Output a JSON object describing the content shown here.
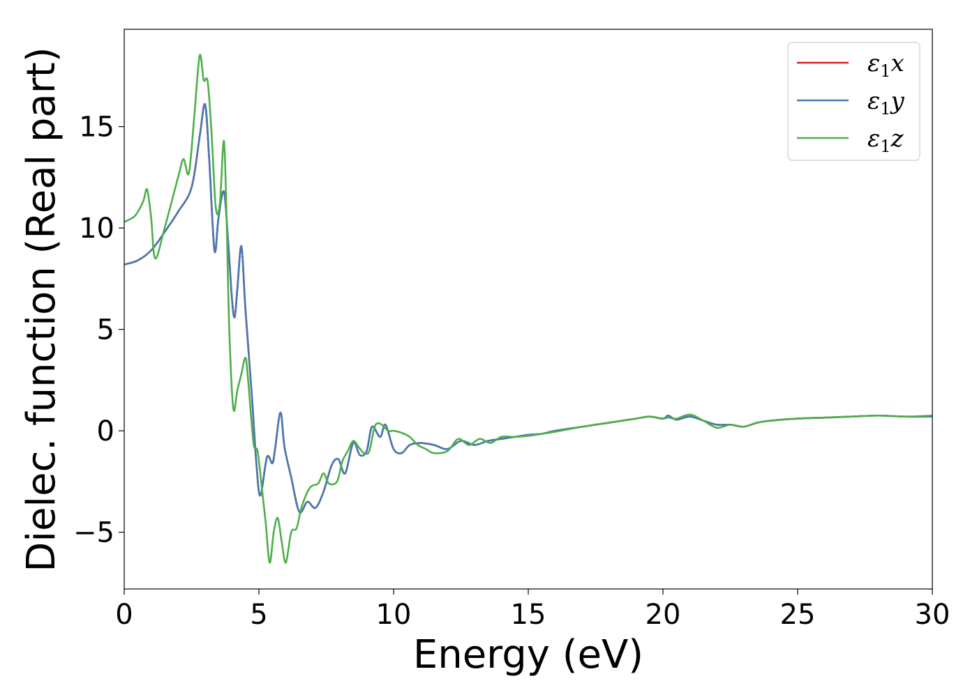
{
  "chart_data": {
    "type": "line",
    "title": "",
    "xlabel": "Energy (eV)",
    "ylabel": "Dielec. function (Real part)",
    "xlim": [
      0,
      30
    ],
    "ylim": [
      -7.8,
      19.8
    ],
    "xticks": [
      0,
      5,
      10,
      15,
      20,
      25,
      30
    ],
    "xtick_labels": [
      "0",
      "5",
      "10",
      "15",
      "20",
      "25",
      "30"
    ],
    "yticks": [
      -5,
      0,
      5,
      10,
      15
    ],
    "ytick_labels": [
      "−5",
      "0",
      "5",
      "10",
      "15"
    ],
    "grid": false,
    "legend_position": "top-right",
    "series": [
      {
        "name": "ε1x",
        "legend": {
          "base": "ε",
          "sub": "1",
          "suffix": "x"
        },
        "color": "#e41a1c",
        "x": [
          0,
          0.5,
          1.0,
          1.5,
          2.0,
          2.5,
          2.8,
          3.0,
          3.15,
          3.35,
          3.5,
          3.7,
          3.85,
          4.0,
          4.1,
          4.2,
          4.35,
          4.5,
          4.75,
          4.9,
          5.05,
          5.3,
          5.5,
          5.6,
          5.8,
          5.95,
          6.2,
          6.5,
          6.8,
          7.1,
          7.4,
          7.7,
          7.95,
          8.2,
          8.5,
          8.75,
          9.0,
          9.2,
          9.5,
          9.7,
          10.0,
          10.3,
          10.6,
          11.0,
          11.5,
          12.0,
          12.5,
          13.0,
          13.5,
          14.0,
          14.5,
          15.0,
          15.5,
          16.0,
          17.0,
          18.0,
          19.0,
          19.5,
          20.0,
          20.2,
          20.5,
          21.0,
          21.5,
          22.0,
          22.5,
          23.0,
          23.5,
          24.0,
          25.0,
          26.0,
          27.0,
          28.0,
          29.0,
          30.0
        ],
        "values": [
          8.2,
          8.4,
          8.9,
          9.8,
          10.8,
          12.0,
          14.5,
          16.1,
          13.5,
          8.9,
          10.5,
          11.8,
          9.5,
          6.5,
          5.6,
          7.0,
          9.1,
          6.0,
          1.5,
          -1.5,
          -3.2,
          -1.3,
          -1.6,
          -0.9,
          0.9,
          -0.8,
          -2.3,
          -4.0,
          -3.5,
          -3.8,
          -3.0,
          -1.7,
          -1.4,
          -2.1,
          -0.6,
          -1.2,
          -1.0,
          0.2,
          -0.3,
          0.3,
          -0.9,
          -1.1,
          -0.7,
          -0.6,
          -0.7,
          -0.9,
          -0.5,
          -0.7,
          -0.5,
          -0.4,
          -0.3,
          -0.2,
          -0.15,
          0.0,
          0.2,
          0.4,
          0.6,
          0.7,
          0.6,
          0.75,
          0.55,
          0.7,
          0.5,
          0.3,
          0.3,
          0.2,
          0.4,
          0.5,
          0.6,
          0.65,
          0.7,
          0.75,
          0.7,
          0.7
        ]
      },
      {
        "name": "ε1y",
        "legend": {
          "base": "ε",
          "sub": "1",
          "suffix": "y"
        },
        "color": "#4678b2",
        "x": [
          0,
          0.5,
          1.0,
          1.5,
          2.0,
          2.5,
          2.8,
          3.0,
          3.15,
          3.35,
          3.5,
          3.7,
          3.85,
          4.0,
          4.1,
          4.2,
          4.35,
          4.5,
          4.75,
          4.9,
          5.05,
          5.3,
          5.5,
          5.6,
          5.8,
          5.95,
          6.2,
          6.5,
          6.8,
          7.1,
          7.4,
          7.7,
          7.95,
          8.2,
          8.5,
          8.75,
          9.0,
          9.2,
          9.5,
          9.7,
          10.0,
          10.3,
          10.6,
          11.0,
          11.5,
          12.0,
          12.5,
          13.0,
          13.5,
          14.0,
          14.5,
          15.0,
          15.5,
          16.0,
          17.0,
          18.0,
          19.0,
          19.5,
          20.0,
          20.2,
          20.5,
          21.0,
          21.5,
          22.0,
          22.5,
          23.0,
          23.5,
          24.0,
          25.0,
          26.0,
          27.0,
          28.0,
          29.0,
          30.0
        ],
        "values": [
          8.2,
          8.4,
          8.9,
          9.8,
          10.8,
          12.0,
          14.5,
          16.1,
          13.5,
          8.9,
          10.5,
          11.8,
          9.5,
          6.5,
          5.6,
          7.0,
          9.1,
          6.0,
          1.5,
          -1.5,
          -3.2,
          -1.3,
          -1.6,
          -0.9,
          0.9,
          -0.8,
          -2.3,
          -4.0,
          -3.5,
          -3.8,
          -3.0,
          -1.7,
          -1.4,
          -2.1,
          -0.6,
          -1.2,
          -1.0,
          0.2,
          -0.3,
          0.3,
          -0.9,
          -1.1,
          -0.7,
          -0.6,
          -0.7,
          -0.9,
          -0.5,
          -0.7,
          -0.5,
          -0.4,
          -0.3,
          -0.2,
          -0.15,
          0.0,
          0.2,
          0.4,
          0.6,
          0.7,
          0.6,
          0.75,
          0.55,
          0.7,
          0.5,
          0.3,
          0.3,
          0.2,
          0.4,
          0.5,
          0.6,
          0.65,
          0.7,
          0.75,
          0.7,
          0.7
        ]
      },
      {
        "name": "ε1z",
        "legend": {
          "base": "ε",
          "sub": "1",
          "suffix": "z"
        },
        "color": "#4daf4a",
        "x": [
          0,
          0.4,
          0.7,
          0.85,
          1.0,
          1.15,
          1.5,
          2.0,
          2.2,
          2.4,
          2.6,
          2.8,
          2.95,
          3.1,
          3.25,
          3.4,
          3.55,
          3.7,
          3.8,
          3.9,
          4.05,
          4.2,
          4.35,
          4.5,
          4.6,
          4.8,
          4.95,
          5.1,
          5.25,
          5.4,
          5.55,
          5.7,
          5.85,
          6.0,
          6.2,
          6.4,
          6.6,
          6.9,
          7.2,
          7.4,
          7.6,
          7.9,
          8.1,
          8.3,
          8.5,
          8.7,
          8.9,
          9.1,
          9.3,
          9.5,
          9.8,
          10.0,
          10.3,
          10.6,
          10.9,
          11.2,
          11.5,
          12.0,
          12.4,
          12.8,
          13.2,
          13.6,
          14.0,
          14.5,
          15.0,
          15.5,
          16.0,
          17.0,
          18.0,
          19.0,
          19.5,
          20.0,
          20.2,
          20.5,
          21.0,
          21.5,
          22.0,
          22.5,
          23.0,
          23.5,
          24.0,
          25.0,
          26.0,
          27.0,
          28.0,
          29.0,
          30.0
        ],
        "values": [
          10.3,
          10.6,
          11.3,
          11.9,
          10.5,
          8.5,
          10.0,
          12.5,
          13.4,
          12.7,
          15.5,
          18.5,
          17.3,
          17.2,
          14.5,
          11.0,
          11.2,
          14.3,
          10.5,
          5.0,
          1.1,
          2.0,
          2.8,
          3.6,
          2.5,
          -0.6,
          -1.0,
          -2.7,
          -4.5,
          -6.5,
          -5.0,
          -4.3,
          -5.5,
          -6.5,
          -5.0,
          -4.8,
          -3.7,
          -2.8,
          -2.6,
          -2.1,
          -2.6,
          -2.5,
          -1.5,
          -1.0,
          -0.5,
          -0.8,
          -1.1,
          -1.0,
          0.2,
          0.35,
          0.0,
          0.0,
          -0.1,
          -0.3,
          -0.7,
          -0.9,
          -1.1,
          -1.0,
          -0.4,
          -0.7,
          -0.4,
          -0.6,
          -0.3,
          -0.3,
          -0.25,
          -0.15,
          -0.05,
          0.2,
          0.4,
          0.6,
          0.7,
          0.6,
          0.65,
          0.6,
          0.8,
          0.5,
          0.15,
          0.3,
          0.2,
          0.4,
          0.5,
          0.6,
          0.65,
          0.7,
          0.75,
          0.7,
          0.75
        ]
      }
    ]
  }
}
